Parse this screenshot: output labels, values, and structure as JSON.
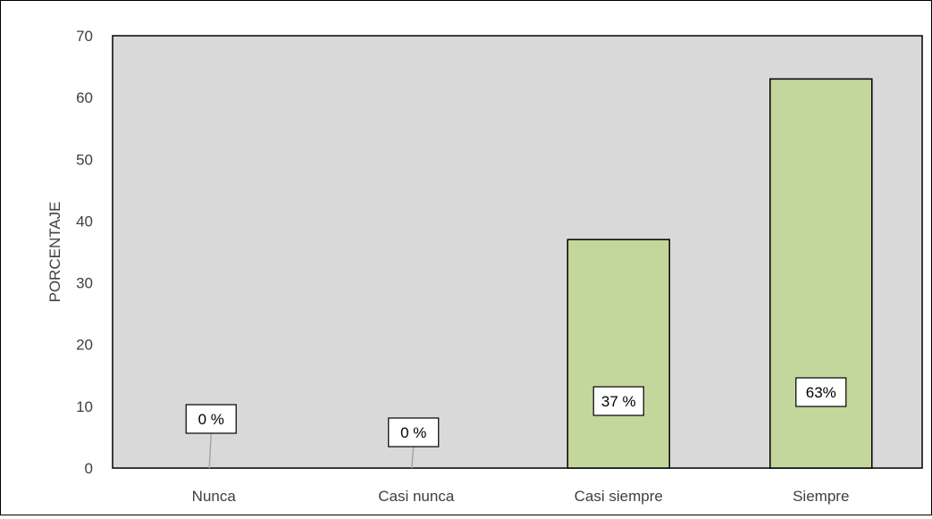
{
  "chart_data": {
    "type": "bar",
    "categories": [
      "Nunca",
      "Casi nunca",
      "Casi siempre",
      "Siempre"
    ],
    "values": [
      0,
      0,
      37,
      63
    ],
    "data_labels": [
      "0 %",
      "0 %",
      "37 %",
      "63%"
    ],
    "ylabel": "PORCENTAJE",
    "xlabel": "",
    "ylim": [
      0,
      70
    ],
    "yticks": [
      0,
      10,
      20,
      30,
      40,
      50,
      60,
      70
    ],
    "grid": false,
    "legend": "none",
    "colors": {
      "bar_fill": "#c3d69b",
      "bar_stroke": "#000000",
      "plot_background": "#d9d9d9",
      "leader_line": "#a6a6a6"
    }
  }
}
